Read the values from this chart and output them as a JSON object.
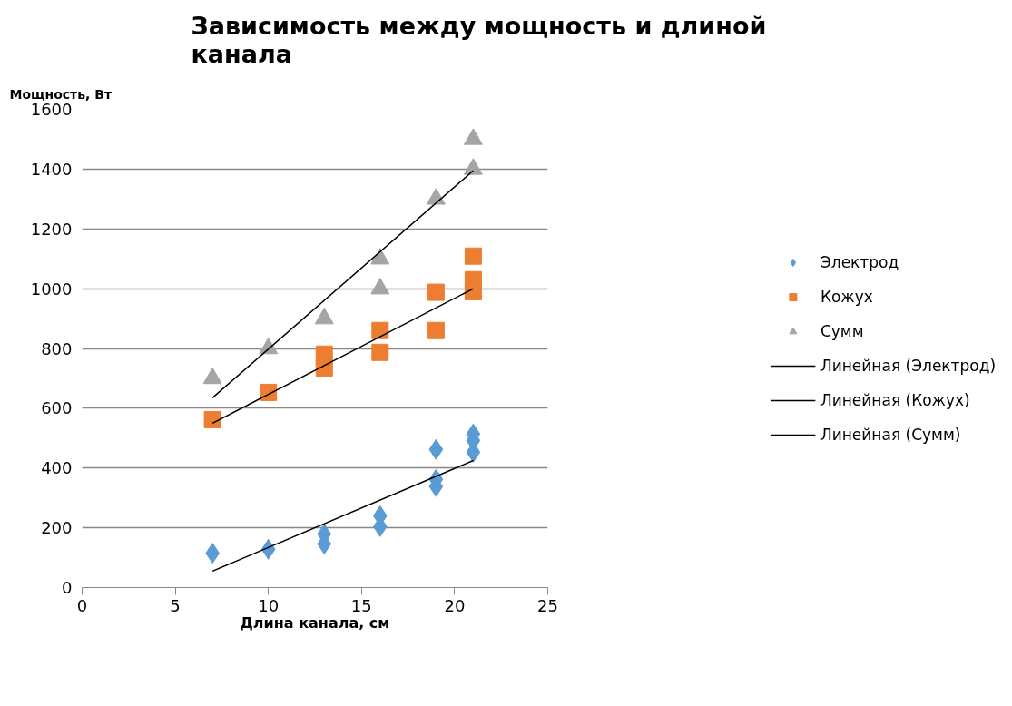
{
  "chart_data": {
    "type": "scatter",
    "title": "Зависимость между мощность и длиной канала",
    "xlabel": "Длина канала, см",
    "ylabel": "Мощность, Вт",
    "xlim": [
      0,
      25
    ],
    "xticks": [
      0,
      5,
      10,
      15,
      20,
      25
    ],
    "ylim": [
      0,
      1600
    ],
    "yticks": [
      0,
      200,
      400,
      600,
      800,
      1000,
      1200,
      1400,
      1600
    ],
    "grid": "y",
    "legend": "right",
    "series": [
      {
        "name": "Электрод",
        "color": "#5b9bd5",
        "marker": "diamond",
        "x": [
          7,
          10,
          13,
          13,
          16,
          16,
          19,
          19,
          19,
          21,
          21,
          21
        ],
        "values": [
          115,
          128,
          179,
          146,
          240,
          204,
          462,
          362,
          338,
          514,
          492,
          453
        ]
      },
      {
        "name": "Кожух",
        "color": "#ed7d31",
        "marker": "square",
        "x": [
          7,
          10,
          13,
          13,
          16,
          16,
          19,
          19,
          21,
          21,
          21
        ],
        "values": [
          562,
          653,
          781,
          735,
          860,
          787,
          988,
          860,
          1109,
          1030,
          990
        ]
      },
      {
        "name": "Сумм",
        "color": "#a5a5a5",
        "marker": "triangle",
        "x": [
          7,
          10,
          13,
          16,
          16,
          19,
          21,
          21
        ],
        "values": [
          700,
          800,
          900,
          1100,
          1000,
          1300,
          1500,
          1400
        ]
      },
      {
        "name": "Линейная (Электрод)",
        "type": "line",
        "color": "#000000",
        "marker": "none",
        "line_style": "solid",
        "x": [
          7,
          21
        ],
        "values": [
          55,
          425
        ]
      },
      {
        "name": "Линейная (Кожух)",
        "type": "line",
        "color": "#000000",
        "marker": "none",
        "line_style": "solid",
        "x": [
          7,
          21
        ],
        "values": [
          550,
          1000
        ]
      },
      {
        "name": "Линейная (Сумм)",
        "type": "line",
        "color": "#000000",
        "marker": "none",
        "line_style": "solid",
        "x": [
          7,
          21
        ],
        "values": [
          635,
          1395
        ]
      }
    ]
  }
}
